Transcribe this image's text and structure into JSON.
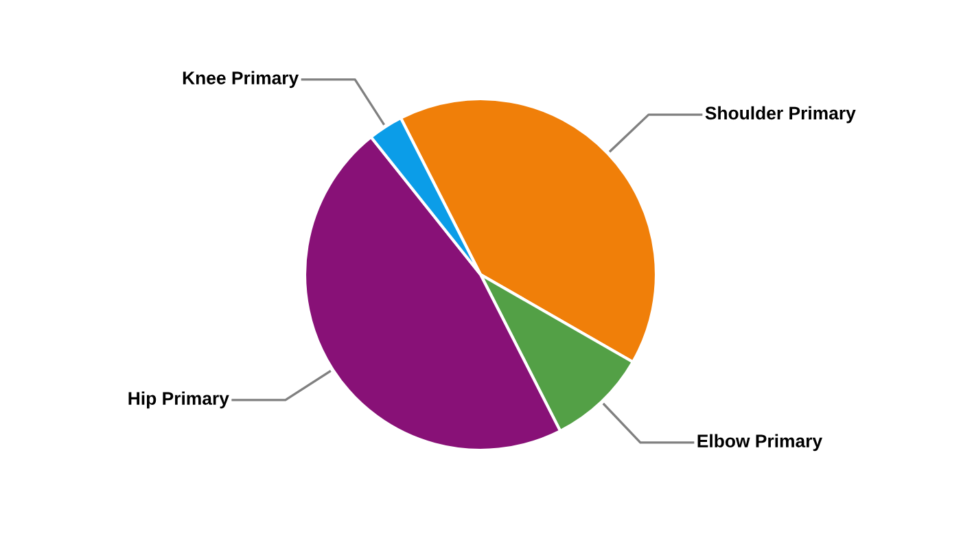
{
  "chart_data": {
    "type": "pie",
    "categories": [
      "Shoulder Primary",
      "Elbow Primary",
      "Hip Primary",
      "Knee Primary"
    ],
    "values": [
      40.8,
      9.2,
      46.8,
      3.2
    ],
    "colors": [
      "#f07f09",
      "#53a046",
      "#881177",
      "#0b9de8"
    ],
    "legend": false
  }
}
